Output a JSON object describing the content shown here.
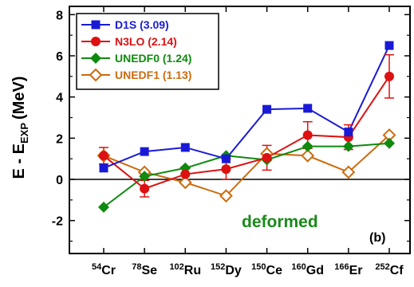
{
  "chart_data": {
    "type": "line",
    "ylabel": "E - E",
    "ylabel_sub": "EXP",
    "ylabel_unit": "(MeV)",
    "ylim": [
      -3.6,
      8.4
    ],
    "yticks": [
      -2,
      0,
      2,
      4,
      6,
      8
    ],
    "ytick_labels": [
      "-2",
      "0",
      "2",
      "4",
      "6",
      "8"
    ],
    "categories": [
      {
        "mass": "54",
        "element": "Cr"
      },
      {
        "mass": "78",
        "element": "Se"
      },
      {
        "mass": "102",
        "element": "Ru"
      },
      {
        "mass": "152",
        "element": "Dy"
      },
      {
        "mass": "150",
        "element": "Ce"
      },
      {
        "mass": "160",
        "element": "Gd"
      },
      {
        "mass": "166",
        "element": "Er"
      },
      {
        "mass": "252",
        "element": "Cf"
      }
    ],
    "legend_position": "top-left",
    "series": [
      {
        "name": "D1S (3.09)",
        "color": "#1a1ad6",
        "marker": "square-filled",
        "values": [
          0.55,
          1.35,
          1.55,
          1.0,
          3.4,
          3.45,
          2.3,
          6.5
        ],
        "errors": [
          null,
          null,
          null,
          null,
          null,
          null,
          null,
          null
        ]
      },
      {
        "name": "N3LO (2.14)",
        "color": "#dd1111",
        "marker": "circle-filled",
        "values": [
          1.15,
          -0.45,
          0.25,
          0.5,
          1.05,
          2.15,
          2.05,
          5.0
        ],
        "errors": [
          0.4,
          0.4,
          0.35,
          0.5,
          0.6,
          0.65,
          0.6,
          1.05
        ]
      },
      {
        "name": "UNEDF0 (1.24)",
        "color": "#0f8a0f",
        "marker": "diamond-filled",
        "values": [
          -1.35,
          0.15,
          0.55,
          1.15,
          0.95,
          1.6,
          1.6,
          1.75
        ],
        "errors": [
          null,
          null,
          null,
          null,
          null,
          null,
          null,
          null
        ]
      },
      {
        "name": "UNEDF1 (1.13)",
        "color": "#cc6b0f",
        "marker": "diamond-open",
        "values": [
          1.15,
          0.35,
          -0.15,
          -0.8,
          1.25,
          1.15,
          0.35,
          2.15
        ],
        "errors": [
          null,
          null,
          null,
          null,
          null,
          null,
          null,
          null
        ]
      }
    ],
    "annotations": {
      "deformed": "deformed",
      "panel": "(b)",
      "deformed_color": "#1a8a1a"
    }
  }
}
